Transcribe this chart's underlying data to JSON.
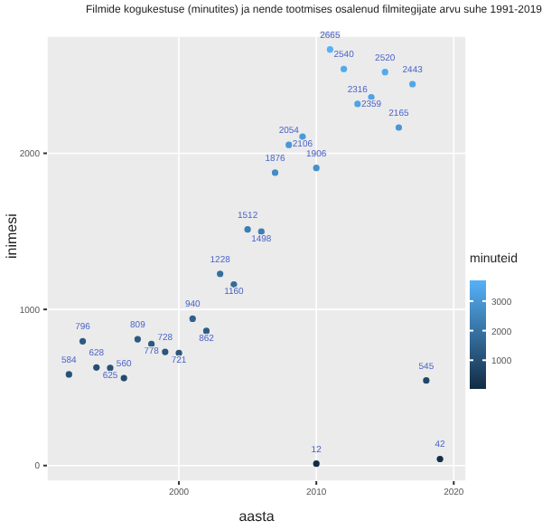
{
  "chart_data": {
    "type": "scatter",
    "title": "Filmide kogukestuse (minutites) ja nende tootmises osalenud filmitegijate arvu suhe 1991-2019",
    "xlabel": "aasta",
    "ylabel": "inimesi",
    "clabel": "minuteid",
    "x": [
      1992,
      1993,
      1994,
      1995,
      1996,
      1997,
      1998,
      1999,
      2000,
      2001,
      2002,
      2003,
      2004,
      2005,
      2006,
      2007,
      2008,
      2009,
      2010,
      2010,
      2011,
      2012,
      2013,
      2014,
      2015,
      2016,
      2017,
      2018,
      2019
    ],
    "values": [
      584,
      796,
      628,
      625,
      560,
      809,
      778,
      728,
      721,
      940,
      862,
      1228,
      1160,
      1512,
      1498,
      1876,
      2054,
      2106,
      1906,
      12,
      2665,
      2540,
      2316,
      2359,
      2520,
      2165,
      2443,
      545,
      42
    ],
    "cvalues": [
      1100,
      1300,
      1000,
      1100,
      900,
      1300,
      1300,
      1200,
      1200,
      1500,
      1400,
      1900,
      1800,
      2300,
      2300,
      2700,
      3000,
      3100,
      2800,
      30,
      3700,
      3500,
      3300,
      3300,
      3500,
      3000,
      3400,
      800,
      100
    ],
    "clim": [
      30,
      3700
    ],
    "cticks": [
      1000,
      2000,
      3000
    ],
    "xlim": [
      1990.4,
      2020.9
    ],
    "xticks": [
      2000,
      2010,
      2020
    ],
    "ylim": [
      -100,
      2750
    ],
    "yticks": [
      0,
      1000,
      2000
    ],
    "grid": true,
    "marker": "circle",
    "data_labels": true
  }
}
